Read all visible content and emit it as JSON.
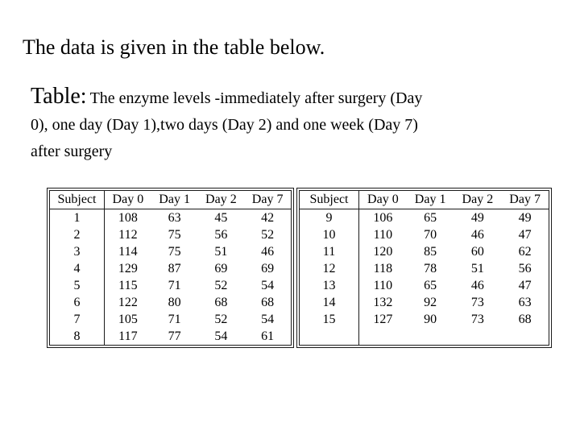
{
  "slide": {
    "title": "The data is given in the table below.",
    "caption": {
      "prefix": "Table:",
      "line1": "The enzyme levels -immediately after surgery (Day",
      "line2": "0), one day (Day 1),two days (Day 2) and one week (Day 7)",
      "line3": "after surgery"
    }
  },
  "tables": [
    {
      "headers": [
        "Subject",
        "Day 0",
        "Day 1",
        "Day 2",
        "Day 7"
      ],
      "rows": [
        [
          "1",
          "108",
          "63",
          "45",
          "42"
        ],
        [
          "2",
          "112",
          "75",
          "56",
          "52"
        ],
        [
          "3",
          "114",
          "75",
          "51",
          "46"
        ],
        [
          "4",
          "129",
          "87",
          "69",
          "69"
        ],
        [
          "5",
          "115",
          "71",
          "52",
          "54"
        ],
        [
          "6",
          "122",
          "80",
          "68",
          "68"
        ],
        [
          "7",
          "105",
          "71",
          "52",
          "54"
        ],
        [
          "8",
          "117",
          "77",
          "54",
          "61"
        ]
      ]
    },
    {
      "headers": [
        "Subject",
        "Day 0",
        "Day 1",
        "Day 2",
        "Day 7"
      ],
      "rows": [
        [
          "9",
          "106",
          "65",
          "49",
          "49"
        ],
        [
          "10",
          "110",
          "70",
          "46",
          "47"
        ],
        [
          "11",
          "120",
          "85",
          "60",
          "62"
        ],
        [
          "12",
          "118",
          "78",
          "51",
          "56"
        ],
        [
          "13",
          "110",
          "65",
          "46",
          "47"
        ],
        [
          "14",
          "132",
          "92",
          "73",
          "63"
        ],
        [
          "15",
          "127",
          "90",
          "73",
          "68"
        ],
        [
          "",
          "",
          "",
          "",
          ""
        ]
      ]
    }
  ],
  "colors": {
    "text": "#000000",
    "border": "#1a1a1a",
    "background": "#ffffff"
  }
}
